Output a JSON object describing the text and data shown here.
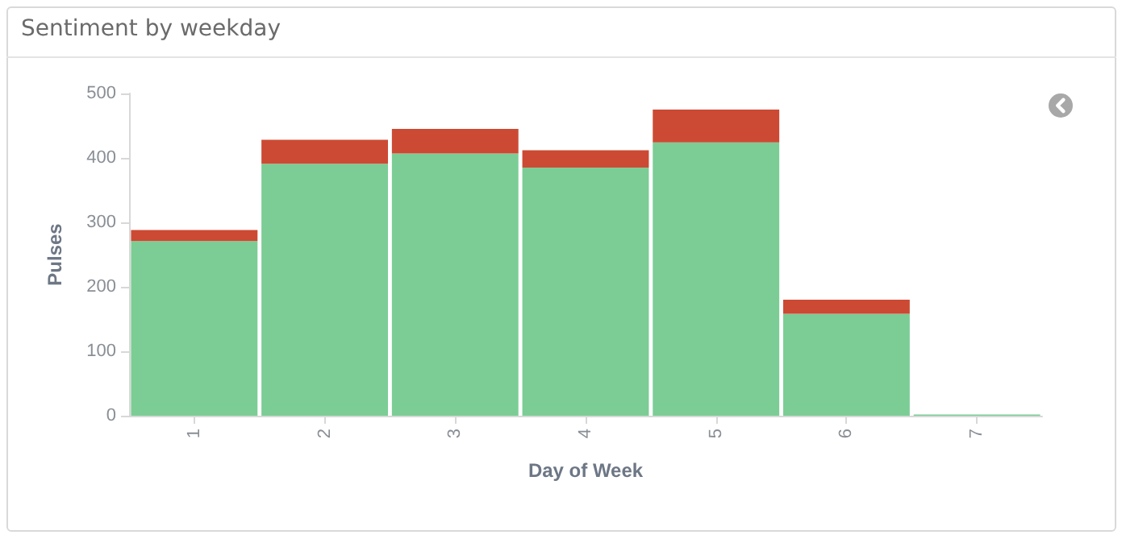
{
  "chart_data": {
    "type": "bar",
    "title": "Sentiment by weekday",
    "xlabel": "Day of Week",
    "ylabel": "Pulses",
    "categories": [
      "1",
      "2",
      "3",
      "4",
      "5",
      "6",
      "7"
    ],
    "stacked": true,
    "series": [
      {
        "color": "#7bcd95",
        "values": [
          271,
          391,
          407,
          385,
          424,
          158,
          2
        ]
      },
      {
        "color": "#cc4a33",
        "values": [
          17,
          37,
          38,
          27,
          51,
          22,
          0
        ]
      }
    ],
    "ylim": [
      0,
      500
    ],
    "yticks": [
      0,
      100,
      200,
      300,
      400,
      500
    ],
    "grid": false
  }
}
